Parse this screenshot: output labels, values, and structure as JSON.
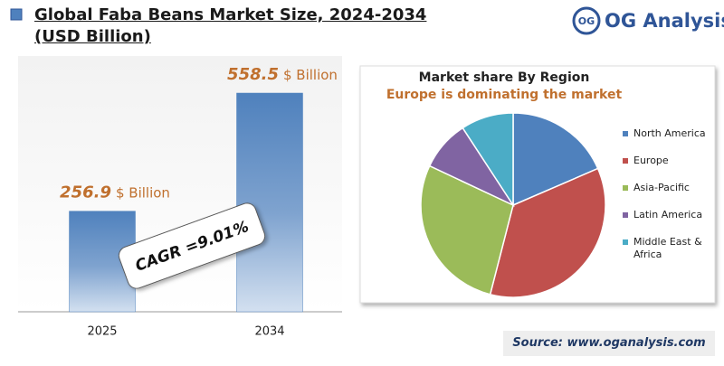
{
  "header": {
    "title": "Global Faba Beans Market Size, 2024-2034 (USD Billion)"
  },
  "logo": {
    "mark": "OG",
    "name": "OG Analysis"
  },
  "source": "Source: www.oganalysis.com",
  "chart_data": [
    {
      "type": "bar",
      "categories": [
        "2025",
        "2034"
      ],
      "values": [
        256.9,
        558.5
      ],
      "value_unit": "$ Billion",
      "color": "#4f81bd",
      "annotation": "CAGR =9.01%"
    },
    {
      "type": "pie",
      "title": "Market share By Region",
      "subtitle": "Europe is dominating the market",
      "legend": "right",
      "series": [
        {
          "name": "North America",
          "color": "#4f81bd",
          "values": [
            18.5
          ]
        },
        {
          "name": "Europe",
          "color": "#c0504d",
          "values": [
            35.5
          ]
        },
        {
          "name": "Asia-Pacific",
          "color": "#9bbb59",
          "values": [
            28
          ]
        },
        {
          "name": "Latin America",
          "color": "#8064a2",
          "values": [
            8.8
          ]
        },
        {
          "name": "Middle East & Africa",
          "color": "#4bacc6",
          "values": [
            9.2
          ]
        }
      ]
    }
  ]
}
